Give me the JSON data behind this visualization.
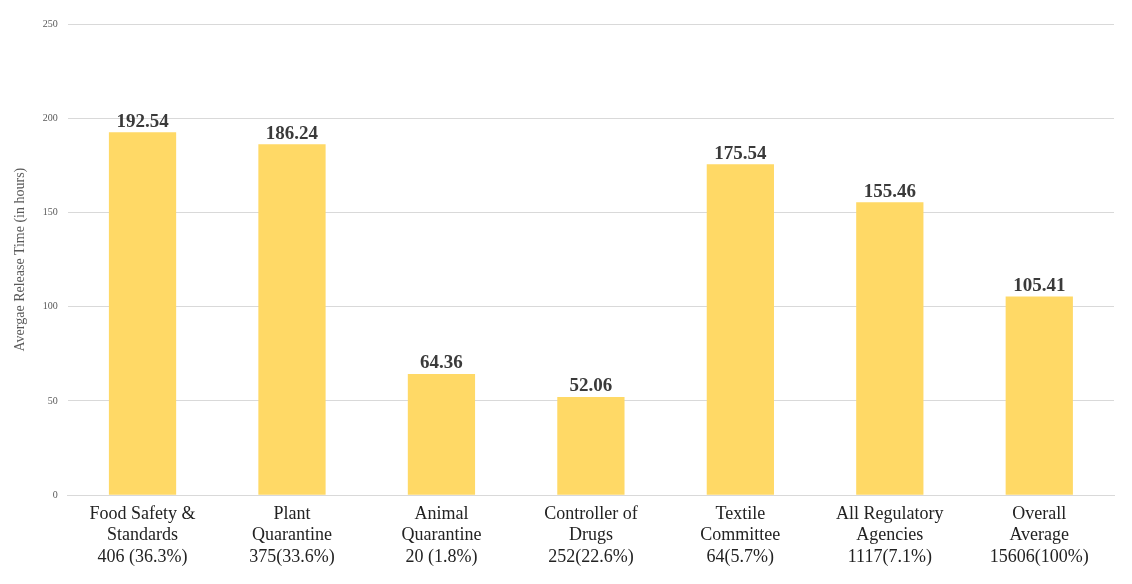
{
  "chart_data": {
    "type": "bar",
    "ylabel": "Avergae Release Time (in hours)",
    "categories": [
      "Food Safety &\nStandards\n406 (36.3%)",
      "Plant\nQuarantine\n375(33.6%)",
      "Animal\nQuarantine\n20 (1.8%)",
      "Controller of\nDrugs\n252(22.6%)",
      "Textile\nCommittee\n64(5.7%)",
      "All Regulatory\nAgencies\n1117(7.1%)",
      "Overall\nAverage\n15606(100%)"
    ],
    "values": [
      192.54,
      186.24,
      64.36,
      52.06,
      175.54,
      155.46,
      105.41
    ],
    "color": "#ffd966",
    "ylim": [
      0,
      250
    ],
    "yticks": [
      0,
      50,
      100,
      150,
      200,
      250
    ],
    "grid": "y",
    "data_labels": true,
    "legend": false
  }
}
